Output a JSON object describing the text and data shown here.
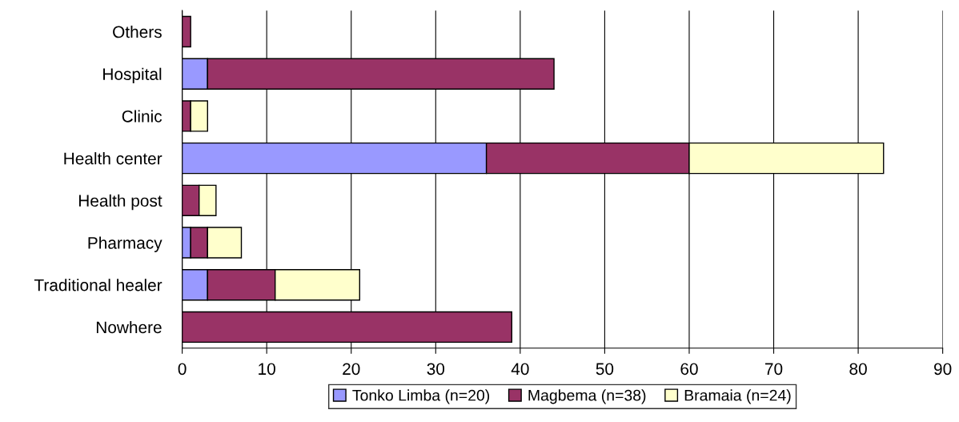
{
  "chart_data": {
    "type": "bar",
    "orientation": "horizontal",
    "stacked": true,
    "categories": [
      "Others",
      "Hospital",
      "Clinic",
      "Health center",
      "Health post",
      "Pharmacy",
      "Traditional healer",
      "Nowhere"
    ],
    "series": [
      {
        "name": "Tonko Limba (n=20)",
        "color": "#9999ff",
        "values": [
          null,
          3,
          null,
          36,
          null,
          1,
          3,
          null
        ]
      },
      {
        "name": "Magbema (n=38)",
        "color": "#993366",
        "values": [
          1,
          41,
          1,
          24,
          2,
          2,
          8,
          39
        ]
      },
      {
        "name": "Bramaia (n=24)",
        "color": "#ffffcc",
        "values": [
          null,
          null,
          2,
          23,
          2,
          4,
          10,
          null
        ]
      }
    ],
    "xlim": [
      0,
      90
    ],
    "xticks": [
      0,
      10,
      20,
      30,
      40,
      50,
      60,
      70,
      80,
      90
    ],
    "grid": "x",
    "legend": "bottom"
  }
}
